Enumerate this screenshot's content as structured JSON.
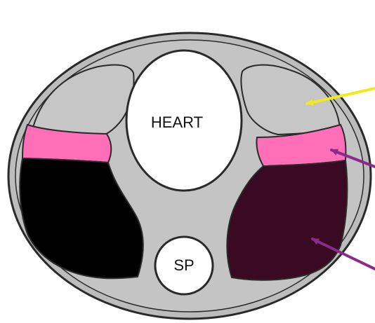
{
  "labels": {
    "heart": "HEART",
    "spine": "SP"
  },
  "colors": {
    "background": "#ffffff",
    "body_outline_fill": "#bcbcbc",
    "chest_fill": "#c4c4c4",
    "outline": "#2a2a2a",
    "lung_grey": "#c6c6c6",
    "pink_band": "#ff6fb8",
    "left_dark": "#000000",
    "right_dark": "#3a0a22",
    "heart_fill": "#ffffff",
    "spine_fill": "#ffffff",
    "arrow_yellow": "#f2ea1d",
    "arrow_purple": "#8a2a8c"
  },
  "icons": {
    "arrow_upper": "yellow-arrow-icon",
    "arrow_middle": "purple-arrow-icon",
    "arrow_lower": "purple-arrow-icon"
  }
}
